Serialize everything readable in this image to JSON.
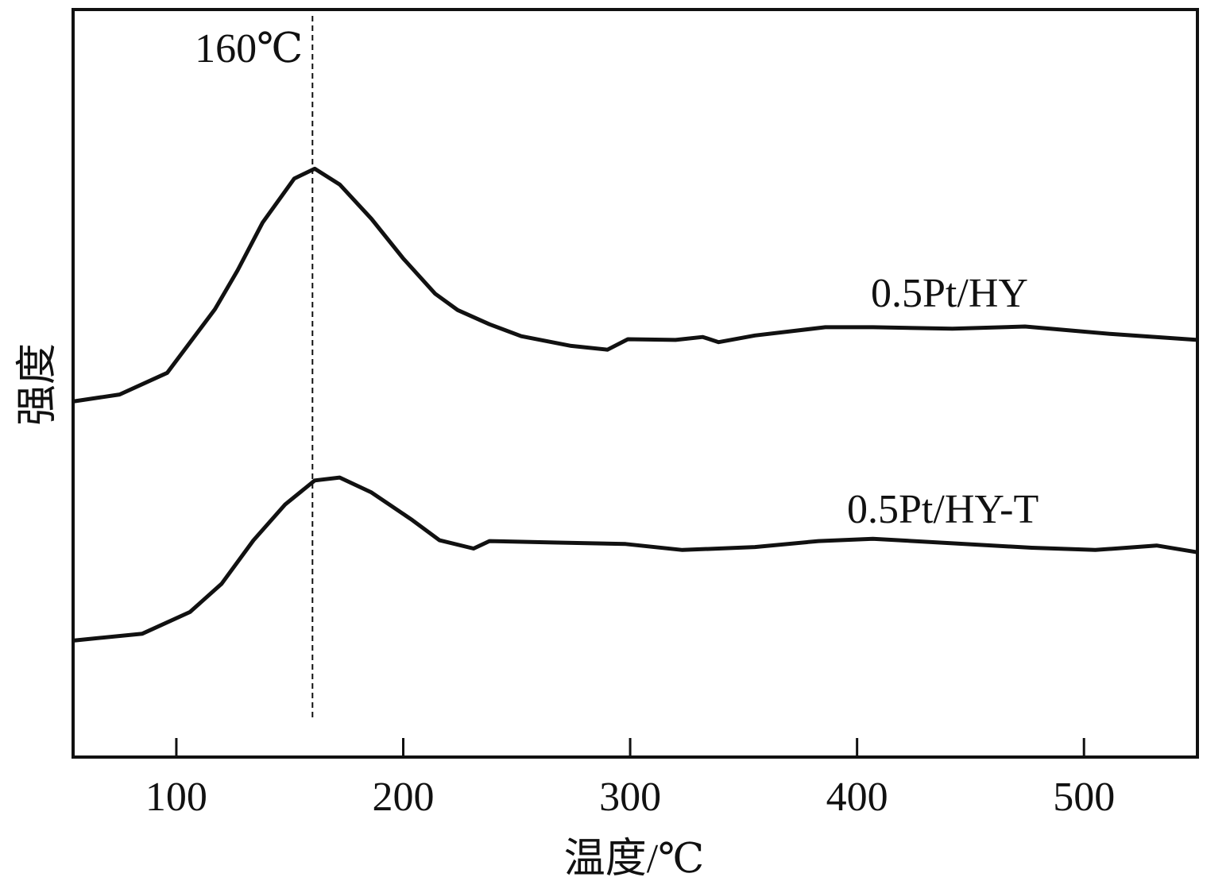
{
  "chart_data": {
    "type": "line",
    "title": "",
    "xlabel": "温度/℃",
    "ylabel": "强度",
    "xlim": [
      54.5,
      550
    ],
    "ylim": [
      0,
      100
    ],
    "x_ticks": [
      100,
      200,
      300,
      400,
      500
    ],
    "x_tick_labels": [
      "100",
      "200",
      "300",
      "400",
      "500"
    ],
    "y_ticks": [],
    "grid": false,
    "legend": "inline labels at right",
    "annotations": [
      {
        "text": "160℃",
        "type": "vertical-dashed-line",
        "x": 160
      }
    ],
    "series": [
      {
        "name": "0.5Pt/HY",
        "color": "#111111",
        "x": [
          55,
          75,
          96,
          117,
          127,
          138,
          152,
          161,
          172,
          186,
          200,
          214,
          224,
          238,
          252,
          274,
          290,
          299,
          320,
          332,
          339,
          355,
          386,
          407,
          442,
          474,
          512,
          550
        ],
        "y": [
          47.6,
          48.5,
          51.4,
          59.9,
          65.1,
          71.5,
          77.4,
          78.7,
          76.6,
          72.0,
          66.7,
          62.0,
          59.8,
          57.9,
          56.3,
          55.0,
          54.5,
          55.9,
          55.8,
          56.2,
          55.5,
          56.4,
          57.5,
          57.5,
          57.3,
          57.6,
          56.6,
          55.8
        ]
      },
      {
        "name": "0.5Pt/HY-T",
        "color": "#111111",
        "x": [
          55,
          85,
          106,
          120,
          134,
          148,
          161,
          172,
          186,
          204,
          216,
          231,
          238,
          266,
          298,
          323,
          355,
          383,
          407,
          442,
          477,
          505,
          532,
          550
        ],
        "y": [
          15.6,
          16.5,
          19.4,
          23.2,
          29.0,
          33.8,
          37.0,
          37.4,
          35.4,
          31.7,
          29.0,
          27.9,
          28.9,
          28.7,
          28.5,
          27.7,
          28.1,
          28.9,
          29.2,
          28.6,
          28.0,
          27.7,
          28.3,
          27.4
        ]
      }
    ]
  }
}
